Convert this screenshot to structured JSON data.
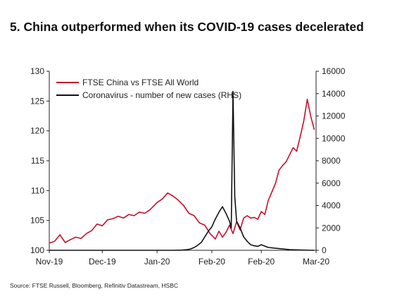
{
  "title": "5. China outperformed when its COVID-19 cases decelerated",
  "source": "Source: FTSE Russell, Bloomberg, Refinitiv Datastream, HSBC",
  "colors": {
    "ftse": "#c8102e",
    "covid": "#111111"
  },
  "chart_data": {
    "type": "line",
    "x_tick_labels": [
      "Nov-19",
      "Dec-19",
      "Jan-20",
      "Feb-20",
      "Feb-20",
      "Mar-20"
    ],
    "x_ticks": [
      "2019-11-01",
      "2019-12-01",
      "2020-01-01",
      "2020-02-01",
      "2020-02-29",
      "2020-03-31"
    ],
    "y_left": {
      "range": [
        100,
        130
      ],
      "ticks": [
        "100",
        "105",
        "110",
        "115",
        "120",
        "125",
        "130"
      ]
    },
    "y_right": {
      "range": [
        0,
        16000
      ],
      "ticks": [
        "0",
        "2000",
        "4000",
        "6000",
        "8000",
        "10000",
        "12000",
        "14000",
        "16000"
      ]
    },
    "legend_position": "top-left",
    "series": [
      {
        "name": "FTSE China vs FTSE All World",
        "axis": "left",
        "points": [
          [
            "2019-11-01",
            101.2
          ],
          [
            "2019-11-04",
            101.5
          ],
          [
            "2019-11-07",
            102.6
          ],
          [
            "2019-11-10",
            101.3
          ],
          [
            "2019-11-13",
            101.8
          ],
          [
            "2019-11-16",
            102.2
          ],
          [
            "2019-11-19",
            102.0
          ],
          [
            "2019-11-22",
            102.8
          ],
          [
            "2019-11-25",
            103.3
          ],
          [
            "2019-11-28",
            104.4
          ],
          [
            "2019-12-01",
            104.1
          ],
          [
            "2019-12-04",
            105.1
          ],
          [
            "2019-12-07",
            105.3
          ],
          [
            "2019-12-10",
            105.7
          ],
          [
            "2019-12-13",
            105.4
          ],
          [
            "2019-12-16",
            106.0
          ],
          [
            "2019-12-19",
            105.8
          ],
          [
            "2019-12-22",
            106.4
          ],
          [
            "2019-12-25",
            106.2
          ],
          [
            "2019-12-28",
            106.8
          ],
          [
            "2020-01-01",
            108.0
          ],
          [
            "2020-01-04",
            108.6
          ],
          [
            "2020-01-07",
            109.6
          ],
          [
            "2020-01-10",
            109.1
          ],
          [
            "2020-01-13",
            108.4
          ],
          [
            "2020-01-16",
            107.5
          ],
          [
            "2020-01-19",
            106.2
          ],
          [
            "2020-01-22",
            105.8
          ],
          [
            "2020-01-25",
            104.6
          ],
          [
            "2020-01-28",
            104.2
          ],
          [
            "2020-01-31",
            102.8
          ],
          [
            "2020-02-03",
            101.9
          ],
          [
            "2020-02-05",
            103.2
          ],
          [
            "2020-02-07",
            102.2
          ],
          [
            "2020-02-09",
            103.0
          ],
          [
            "2020-02-11",
            104.2
          ],
          [
            "2020-02-13",
            102.8
          ],
          [
            "2020-02-15",
            104.8
          ],
          [
            "2020-02-17",
            103.4
          ],
          [
            "2020-02-19",
            105.4
          ],
          [
            "2020-02-21",
            105.8
          ],
          [
            "2020-02-23",
            105.4
          ],
          [
            "2020-02-25",
            105.5
          ],
          [
            "2020-02-27",
            105.2
          ],
          [
            "2020-02-29",
            106.5
          ],
          [
            "2020-03-02",
            106.0
          ],
          [
            "2020-03-04",
            108.4
          ],
          [
            "2020-03-06",
            109.8
          ],
          [
            "2020-03-08",
            111.2
          ],
          [
            "2020-03-10",
            113.4
          ],
          [
            "2020-03-12",
            114.2
          ],
          [
            "2020-03-14",
            114.8
          ],
          [
            "2020-03-16",
            116.0
          ],
          [
            "2020-03-18",
            117.2
          ],
          [
            "2020-03-20",
            116.6
          ],
          [
            "2020-03-22",
            119.0
          ],
          [
            "2020-03-24",
            121.6
          ],
          [
            "2020-03-26",
            125.3
          ],
          [
            "2020-03-28",
            122.4
          ],
          [
            "2020-03-30",
            120.2
          ]
        ]
      },
      {
        "name": "Coronavirus - number of new cases (RHS)",
        "axis": "right",
        "points": [
          [
            "2019-11-01",
            0
          ],
          [
            "2020-01-05",
            0
          ],
          [
            "2020-01-10",
            0
          ],
          [
            "2020-01-15",
            20
          ],
          [
            "2020-01-18",
            60
          ],
          [
            "2020-01-20",
            120
          ],
          [
            "2020-01-22",
            250
          ],
          [
            "2020-01-24",
            450
          ],
          [
            "2020-01-26",
            700
          ],
          [
            "2020-01-28",
            1200
          ],
          [
            "2020-01-30",
            1700
          ],
          [
            "2020-02-01",
            2100
          ],
          [
            "2020-02-03",
            2800
          ],
          [
            "2020-02-05",
            3400
          ],
          [
            "2020-02-07",
            3900
          ],
          [
            "2020-02-09",
            3300
          ],
          [
            "2020-02-11",
            2600
          ],
          [
            "2020-02-12",
            2000
          ],
          [
            "2020-02-13",
            14200
          ],
          [
            "2020-02-14",
            4800
          ],
          [
            "2020-02-15",
            2600
          ],
          [
            "2020-02-17",
            2000
          ],
          [
            "2020-02-19",
            1200
          ],
          [
            "2020-02-21",
            800
          ],
          [
            "2020-02-23",
            500
          ],
          [
            "2020-02-25",
            400
          ],
          [
            "2020-02-27",
            350
          ],
          [
            "2020-02-29",
            500
          ],
          [
            "2020-03-04",
            250
          ],
          [
            "2020-03-10",
            150
          ],
          [
            "2020-03-16",
            60
          ],
          [
            "2020-03-22",
            30
          ],
          [
            "2020-03-30",
            0
          ]
        ]
      }
    ]
  }
}
